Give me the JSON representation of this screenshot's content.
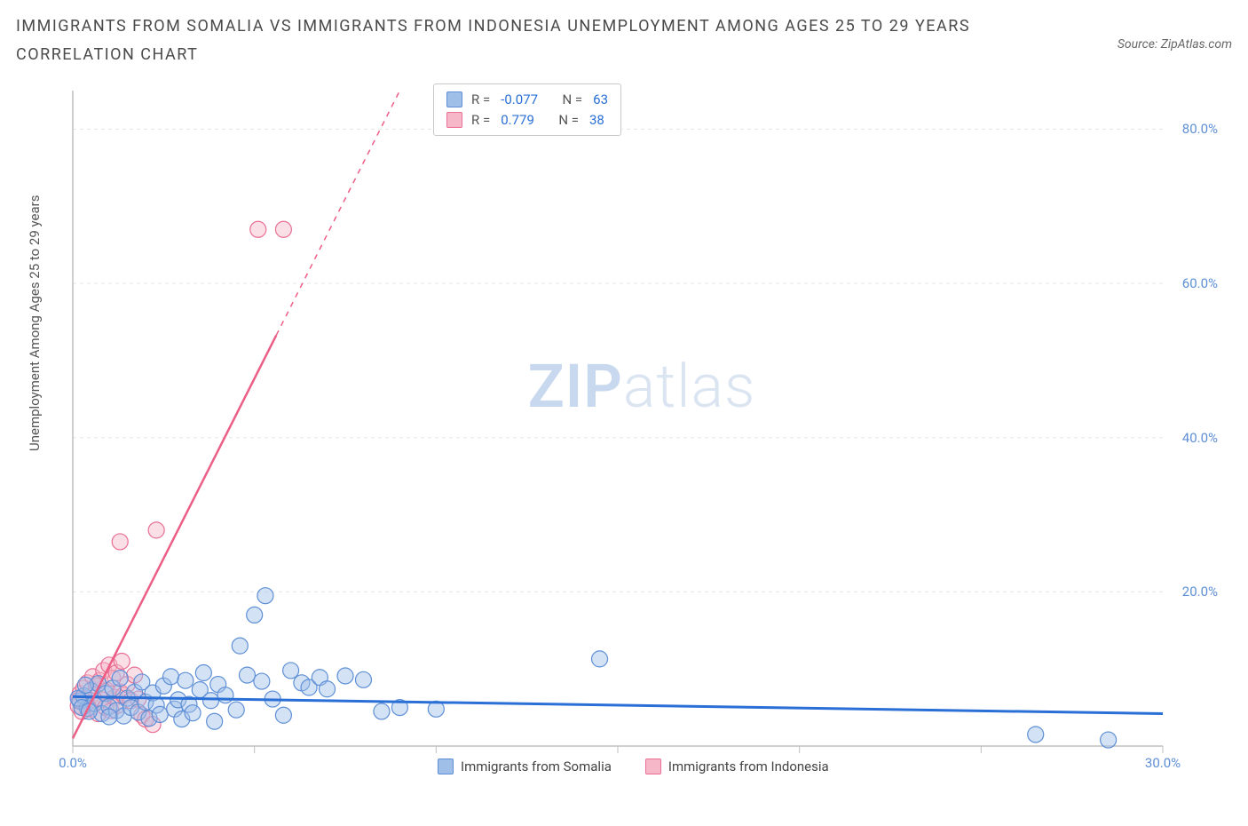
{
  "title": "IMMIGRANTS FROM SOMALIA VS IMMIGRANTS FROM INDONESIA UNEMPLOYMENT AMONG AGES 25 TO 29 YEARS CORRELATION CHART",
  "source": "Source: ZipAtlas.com",
  "ylabel": "Unemployment Among Ages 25 to 29 years",
  "watermark_a": "ZIP",
  "watermark_b": "atlas",
  "chart": {
    "type": "scatter",
    "xlim": [
      0,
      30
    ],
    "ylim": [
      0,
      85
    ],
    "xtick_positions": [
      0,
      5,
      10,
      15,
      20,
      25,
      30
    ],
    "xtick_labels": [
      "0.0%",
      "",
      "",
      "",
      "",
      "",
      "30.0%"
    ],
    "ytick_positions": [
      20,
      40,
      60,
      80
    ],
    "ytick_labels": [
      "20.0%",
      "40.0%",
      "60.0%",
      "80.0%"
    ],
    "grid_color": "#e6e6e6",
    "axis_color": "#bfbfbf",
    "background_color": "#ffffff",
    "series": [
      {
        "name": "Immigrants from Somalia",
        "color_fill": "#9fbfe8",
        "color_stroke": "#5e8fd6",
        "fill_opacity": 0.45,
        "marker_radius": 9,
        "R": "-0.077",
        "N": "63",
        "trend": {
          "x1": 0,
          "y1": 6.4,
          "x2": 30,
          "y2": 4.2,
          "stroke": "#2a6fd6",
          "width": 3,
          "dash_after_x": null
        },
        "points": [
          [
            0.2,
            5.8
          ],
          [
            0.3,
            6.5
          ],
          [
            0.4,
            4.9
          ],
          [
            0.5,
            7.2
          ],
          [
            0.6,
            5.5
          ],
          [
            0.7,
            8.1
          ],
          [
            0.8,
            4.2
          ],
          [
            0.9,
            6.8
          ],
          [
            1.0,
            5.1
          ],
          [
            1.1,
            7.5
          ],
          [
            1.2,
            4.6
          ],
          [
            1.3,
            8.8
          ],
          [
            1.4,
            3.9
          ],
          [
            1.5,
            6.2
          ],
          [
            1.6,
            5.0
          ],
          [
            1.7,
            7.0
          ],
          [
            1.8,
            4.4
          ],
          [
            1.9,
            8.3
          ],
          [
            2.0,
            5.7
          ],
          [
            2.1,
            3.6
          ],
          [
            2.2,
            6.9
          ],
          [
            2.3,
            5.3
          ],
          [
            2.4,
            4.1
          ],
          [
            2.5,
            7.8
          ],
          [
            2.7,
            9.0
          ],
          [
            2.8,
            4.8
          ],
          [
            2.9,
            6.0
          ],
          [
            3.0,
            3.5
          ],
          [
            3.1,
            8.5
          ],
          [
            3.2,
            5.4
          ],
          [
            3.3,
            4.3
          ],
          [
            3.5,
            7.3
          ],
          [
            3.6,
            9.5
          ],
          [
            3.8,
            5.9
          ],
          [
            3.9,
            3.2
          ],
          [
            4.0,
            8.0
          ],
          [
            4.2,
            6.6
          ],
          [
            4.5,
            4.7
          ],
          [
            4.6,
            13.0
          ],
          [
            4.8,
            9.2
          ],
          [
            5.0,
            17.0
          ],
          [
            5.2,
            8.4
          ],
          [
            5.3,
            19.5
          ],
          [
            5.5,
            6.1
          ],
          [
            5.8,
            4.0
          ],
          [
            6.0,
            9.8
          ],
          [
            6.3,
            8.2
          ],
          [
            6.5,
            7.6
          ],
          [
            6.8,
            8.9
          ],
          [
            7.0,
            7.4
          ],
          [
            7.5,
            9.1
          ],
          [
            8.0,
            8.6
          ],
          [
            8.5,
            4.5
          ],
          [
            9.0,
            5.0
          ],
          [
            10.0,
            4.8
          ],
          [
            14.5,
            11.3
          ],
          [
            26.5,
            1.5
          ],
          [
            28.5,
            0.8
          ],
          [
            0.15,
            6.2
          ],
          [
            0.25,
            5.0
          ],
          [
            0.35,
            7.9
          ],
          [
            0.45,
            4.5
          ],
          [
            1.0,
            3.8
          ]
        ]
      },
      {
        "name": "Immigrants from Indonesia",
        "color_fill": "#f6b8c8",
        "color_stroke": "#e96f94",
        "fill_opacity": 0.45,
        "marker_radius": 9,
        "R": "0.779",
        "N": "38",
        "trend": {
          "x1": 0,
          "y1": 1.0,
          "x2": 9,
          "y2": 85,
          "stroke": "#ed5e86",
          "width": 2.5,
          "dash_after_x": 5.6
        },
        "points": [
          [
            0.15,
            5.2
          ],
          [
            0.2,
            6.8
          ],
          [
            0.25,
            4.5
          ],
          [
            0.3,
            7.5
          ],
          [
            0.35,
            5.8
          ],
          [
            0.4,
            8.2
          ],
          [
            0.45,
            4.8
          ],
          [
            0.5,
            6.5
          ],
          [
            0.55,
            9.0
          ],
          [
            0.6,
            5.5
          ],
          [
            0.65,
            7.8
          ],
          [
            0.7,
            4.2
          ],
          [
            0.75,
            8.5
          ],
          [
            0.8,
            6.0
          ],
          [
            0.85,
            9.8
          ],
          [
            0.9,
            5.0
          ],
          [
            0.95,
            7.2
          ],
          [
            1.0,
            10.5
          ],
          [
            1.05,
            4.6
          ],
          [
            1.1,
            8.8
          ],
          [
            1.15,
            6.3
          ],
          [
            1.2,
            9.5
          ],
          [
            1.25,
            5.3
          ],
          [
            1.3,
            7.0
          ],
          [
            1.35,
            11.0
          ],
          [
            1.4,
            6.6
          ],
          [
            1.5,
            8.0
          ],
          [
            1.6,
            5.9
          ],
          [
            1.7,
            9.2
          ],
          [
            1.8,
            6.1
          ],
          [
            1.9,
            4.0
          ],
          [
            2.0,
            3.5
          ],
          [
            2.2,
            2.8
          ],
          [
            1.3,
            26.5
          ],
          [
            2.3,
            28.0
          ],
          [
            5.1,
            67.0
          ],
          [
            5.8,
            67.0
          ],
          [
            0.18,
            6.0
          ]
        ]
      }
    ],
    "r_label": "R =",
    "n_label": "N ="
  }
}
